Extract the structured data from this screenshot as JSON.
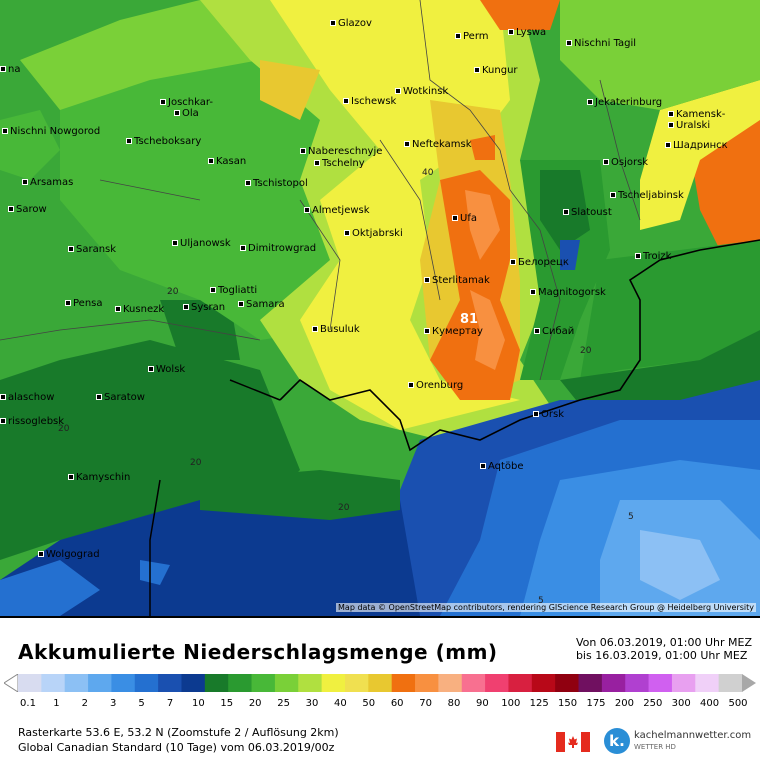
{
  "map": {
    "cities": [
      {
        "name": "Glazov"
      },
      {
        "name": "Perm"
      },
      {
        "name": "Lyswa"
      },
      {
        "name": "Nischni Tagil"
      },
      {
        "name": "Kungur"
      },
      {
        "name": "Joschkar-"
      },
      {
        "name": "Ola"
      },
      {
        "name": "Ischewsk"
      },
      {
        "name": "Wotkinsk"
      },
      {
        "name": "Jekaterinburg"
      },
      {
        "name": "Nischni Nowgorod"
      },
      {
        "name": "Tscheboksary"
      },
      {
        "name": "Kasan"
      },
      {
        "name": "Naberesсhnyje"
      },
      {
        "name": "Tschelny"
      },
      {
        "name": "Neftekamsk"
      },
      {
        "name": "Kamensk-"
      },
      {
        "name": "Uralski"
      },
      {
        "name": "Шадринск"
      },
      {
        "name": "Osjorsk"
      },
      {
        "name": "Arsamas"
      },
      {
        "name": "Tschistopol"
      },
      {
        "name": "Tscheljabinsk"
      },
      {
        "name": "Sarow"
      },
      {
        "name": "Almetjewsk"
      },
      {
        "name": "Ufa"
      },
      {
        "name": "Slatoust"
      },
      {
        "name": "Uljanowsk"
      },
      {
        "name": "Oktjabrski"
      },
      {
        "name": "Dimitrowgrad"
      },
      {
        "name": "Saransk"
      },
      {
        "name": "Белорецк"
      },
      {
        "name": "Troizk"
      },
      {
        "name": "Sterlitamak"
      },
      {
        "name": "Togliatti"
      },
      {
        "name": "Magnitogorsk"
      },
      {
        "name": "Pensa"
      },
      {
        "name": "Kusnezk"
      },
      {
        "name": "Sysran"
      },
      {
        "name": "Samara"
      },
      {
        "name": "Busuluk"
      },
      {
        "name": "Кумертау"
      },
      {
        "name": "Сибай"
      },
      {
        "name": "Wolsk"
      },
      {
        "name": "Orenburg"
      },
      {
        "name": "alaschow"
      },
      {
        "name": "Saratow"
      },
      {
        "name": "Orsk"
      },
      {
        "name": "rissoglebsk"
      },
      {
        "name": "Kamyschin"
      },
      {
        "name": "Aqtöbe"
      },
      {
        "name": "Wolgograd"
      },
      {
        "name": "na"
      }
    ],
    "contours": [
      "40",
      "20",
      "81",
      "20",
      "20",
      "20",
      "20",
      "5",
      "5"
    ],
    "credit": "Map data © OpenStreetMap contributors, rendering GIScience Research Group @ Heidelberg University"
  },
  "legend": {
    "title": "Akkumulierte Niederschlagsmenge (mm)",
    "period_from": "Von 06.03.2019, 01:00 Uhr MEZ",
    "period_to": "bis 16.03.2019, 01:00 Uhr MEZ",
    "ticks": [
      "0.1",
      "1",
      "2",
      "3",
      "5",
      "7",
      "10",
      "15",
      "20",
      "25",
      "30",
      "40",
      "50",
      "60",
      "70",
      "80",
      "90",
      "100",
      "125",
      "150",
      "175",
      "200",
      "250",
      "300",
      "400",
      "500"
    ],
    "colors": [
      "#d8dcf0",
      "#b8d4f8",
      "#8cc0f4",
      "#5ea8ee",
      "#3a8ee4",
      "#2470d0",
      "#1a50b0",
      "#0c3a90",
      "#187a2a",
      "#2a9a30",
      "#48b838",
      "#7ad038",
      "#b0e040",
      "#f0f040",
      "#f0e050",
      "#e8c830",
      "#f07010",
      "#f89040",
      "#f8b080",
      "#f87090",
      "#f04070",
      "#d82040",
      "#b80818",
      "#900010",
      "#701060",
      "#9820a0",
      "#b040d0",
      "#d060f0",
      "#e8a0f0",
      "#f0d0f8",
      "#d0d0d0"
    ],
    "footer_line1": "Rasterkarte 53.6 E, 53.2 N (Zoomstufe 2 / Auflösung 2km)",
    "footer_line2": "Global Canadian Standard (10 Tage) vom 06.03.2019/00z",
    "brand": "kachelmannwetter.com",
    "brand_sub": "WETTER HD",
    "logo_letter": "k."
  }
}
